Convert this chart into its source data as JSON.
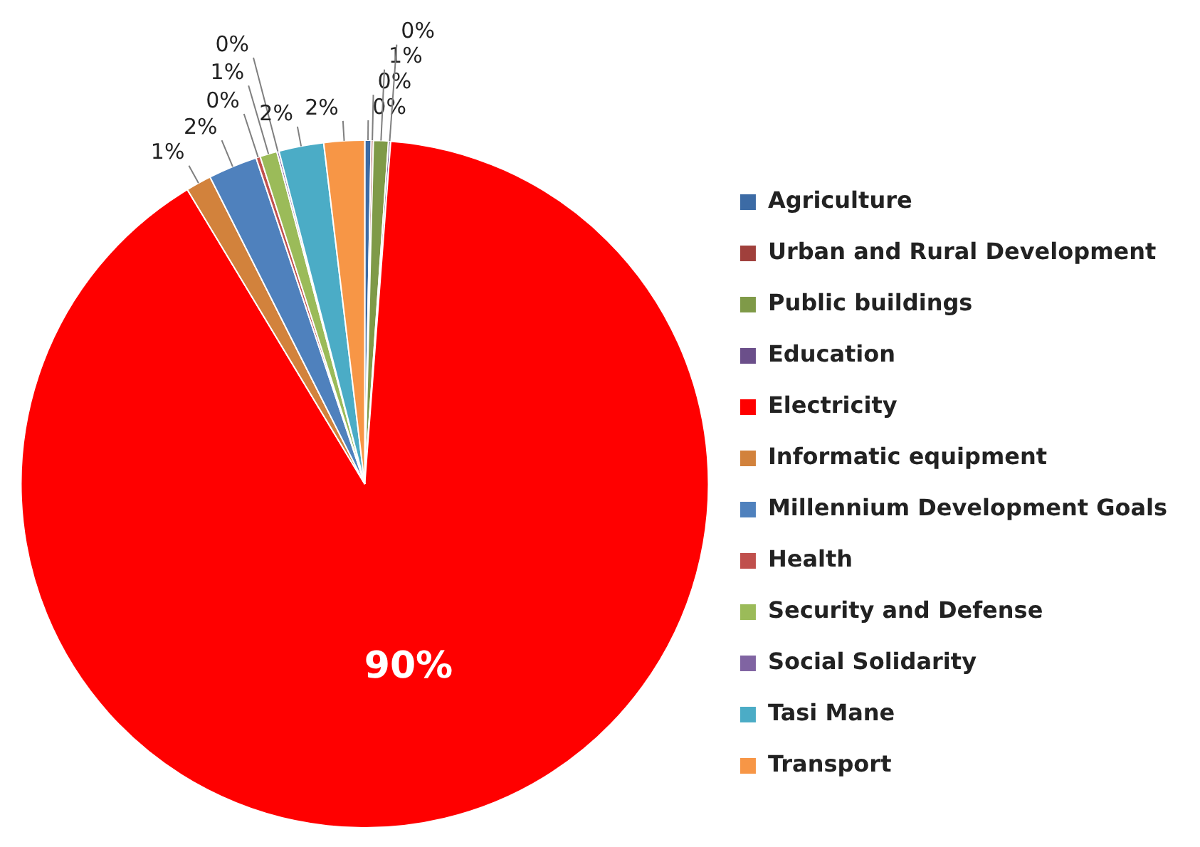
{
  "chart_data": {
    "type": "pie",
    "categories": [
      "Agriculture",
      "Urban and Rural Development",
      "Public buildings",
      "Education",
      "Electricity",
      "Informatic equipment",
      "Millennium Development Goals",
      "Health",
      "Security and Defense",
      "Social Solidarity",
      "Tasi Mane",
      "Transport"
    ],
    "values": [
      0.3,
      0.1,
      0.7,
      0.1,
      89.8,
      1.2,
      2.3,
      0.2,
      0.8,
      0.1,
      2.1,
      1.9
    ],
    "value_labels": [
      "0%",
      "0%",
      "1%",
      "0%",
      "90%",
      "1%",
      "2%",
      "0%",
      "1%",
      "0%",
      "2%",
      "2%"
    ],
    "colors": [
      "#3c6ba5",
      "#a0403c",
      "#7f9a48",
      "#6b4f8a",
      "#ff0000",
      "#d2823c",
      "#4f81bd",
      "#c0504d",
      "#9bbb59",
      "#8064a2",
      "#4bacc6",
      "#f79646"
    ],
    "legend": "right"
  }
}
